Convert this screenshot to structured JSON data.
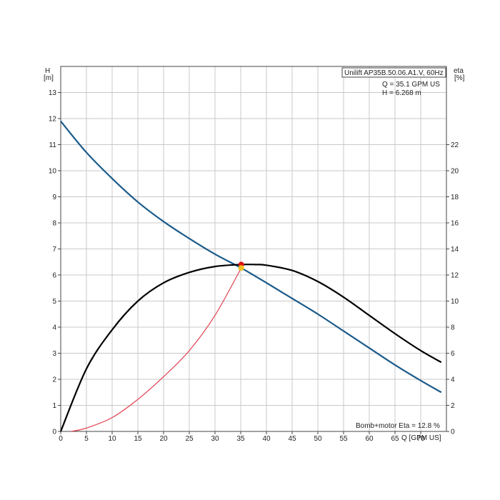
{
  "chart_data": {
    "type": "line",
    "title": "Unilift AP35B.50.06.A1.V, 60Hz",
    "info": {
      "q_readout": "Q = 35.1 GPM US",
      "h_readout": "H = 6.268 m",
      "eta_readout": "Bomb+motor Eta = 12.8 %"
    },
    "y_left_label": [
      "H",
      "[m]"
    ],
    "y_right_label": [
      "eta",
      "[%]"
    ],
    "xlabel": "Q [GPM US]",
    "xlim": [
      0,
      75
    ],
    "ylim_left": [
      0,
      14
    ],
    "ylim_right": [
      0,
      28
    ],
    "x_ticks": [
      0,
      5,
      10,
      15,
      20,
      25,
      30,
      35,
      40,
      45,
      50,
      55,
      60,
      65,
      70
    ],
    "y_left_ticks": [
      0,
      1,
      2,
      3,
      4,
      5,
      6,
      7,
      8,
      9,
      10,
      11,
      12,
      13
    ],
    "y_right_ticks": [
      0,
      2,
      4,
      6,
      8,
      10,
      12,
      14,
      16,
      18,
      20,
      22
    ],
    "grid": true,
    "series": [
      {
        "name": "",
        "axis": "left",
        "color": "#1a5a8a",
        "x": [
          0,
          5,
          10,
          15,
          20,
          25,
          30,
          35.1,
          40,
          45,
          50,
          55,
          60,
          65,
          70,
          74
        ],
        "y": [
          11.9,
          10.7,
          9.7,
          8.8,
          8.05,
          7.4,
          6.8,
          6.268,
          5.7,
          5.1,
          4.5,
          3.85,
          3.2,
          2.55,
          1.95,
          1.5
        ]
      },
      {
        "name": "",
        "axis": "right",
        "color": "#000000",
        "x": [
          0,
          5,
          10,
          15,
          20,
          25,
          30,
          35,
          38,
          40,
          45,
          50,
          55,
          60,
          65,
          70,
          74
        ],
        "y": [
          0,
          4.8,
          7.8,
          10,
          11.4,
          12.2,
          12.65,
          12.8,
          12.8,
          12.75,
          12.35,
          11.5,
          10.3,
          8.9,
          7.5,
          6.2,
          5.3
        ]
      },
      {
        "name": "",
        "axis": "left",
        "color": "#e04050",
        "x": [
          2,
          5,
          10,
          15,
          20,
          25,
          30,
          35.1
        ],
        "y": [
          0,
          0.13,
          0.53,
          1.23,
          2.1,
          3.1,
          4.45,
          6.268
        ]
      }
    ],
    "operating_point": {
      "q": 35.1,
      "h": 6.268,
      "eta": 12.8,
      "h_marker_color": "#f0c020",
      "eta_marker_color": "#e01010"
    }
  }
}
